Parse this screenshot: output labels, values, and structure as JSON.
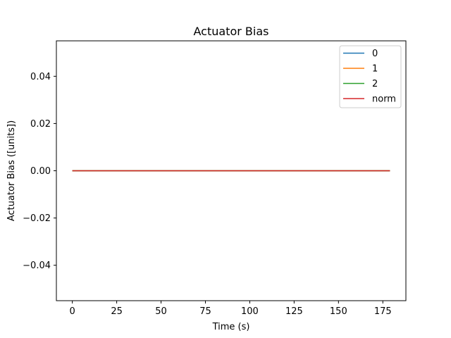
{
  "chart_data": {
    "type": "line",
    "title": "Actuator Bias",
    "xlabel": "Time (s)",
    "ylabel": "Actuator Bias ([units])",
    "xlim": [
      -9,
      188
    ],
    "ylim": [
      -0.055,
      0.055
    ],
    "xticks": [
      0,
      25,
      50,
      75,
      100,
      125,
      150,
      175
    ],
    "xtick_labels": [
      "0",
      "25",
      "50",
      "75",
      "100",
      "125",
      "150",
      "175"
    ],
    "yticks": [
      -0.04,
      -0.02,
      0.0,
      0.02,
      0.04
    ],
    "ytick_labels": [
      "−0.04",
      "−0.02",
      "0.00",
      "0.02",
      "0.04"
    ],
    "grid": false,
    "legend_position": "top-right",
    "series": [
      {
        "name": "0",
        "color": "#1f77b4",
        "x": [
          0,
          179
        ],
        "y": [
          0,
          0
        ]
      },
      {
        "name": "1",
        "color": "#ff7f0e",
        "x": [
          0,
          179
        ],
        "y": [
          0,
          0
        ]
      },
      {
        "name": "2",
        "color": "#2ca02c",
        "x": [
          0,
          179
        ],
        "y": [
          0,
          0
        ]
      },
      {
        "name": "norm",
        "color": "#d62728",
        "x": [
          0,
          179
        ],
        "y": [
          0,
          0
        ]
      }
    ]
  }
}
